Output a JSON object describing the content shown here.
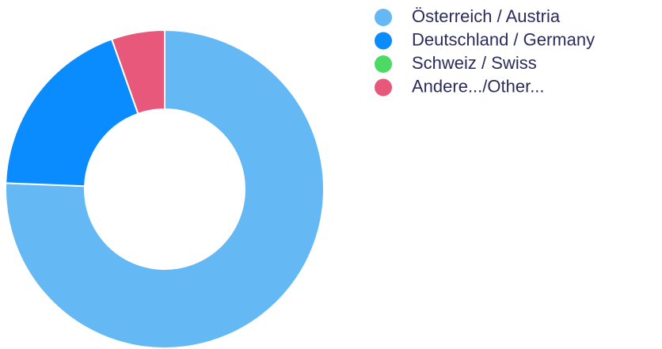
{
  "chart_data": {
    "type": "pie",
    "categories": [
      "Österreich / Austria",
      "Deutschland / Germany",
      "Schweiz / Swiss",
      "Andere.../Other..."
    ],
    "values": [
      75.6,
      19.0,
      0,
      5.4
    ],
    "colors": [
      "#64b9f5",
      "#0a8cff",
      "#4cd964",
      "#e8587a"
    ],
    "legend": "right"
  }
}
